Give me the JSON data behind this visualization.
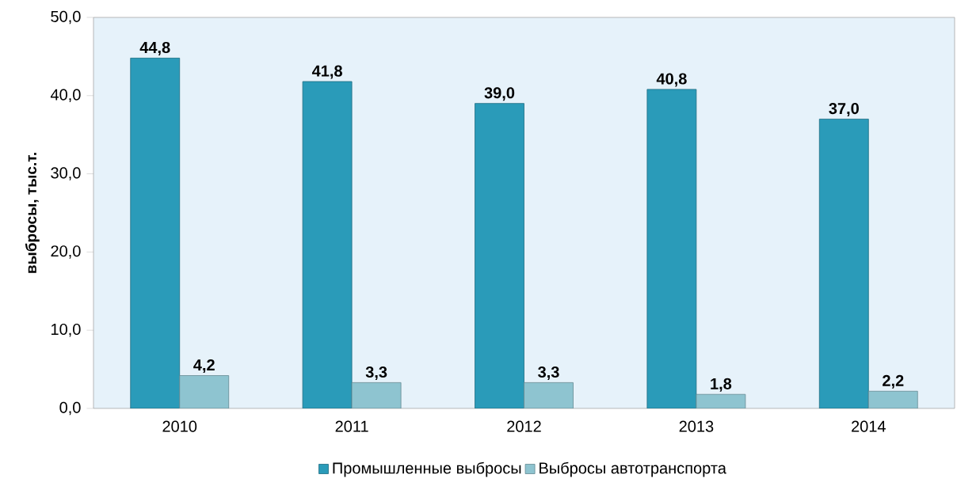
{
  "chart_data": {
    "type": "bar",
    "ylabel": "выбросы, тыс.т.",
    "categories": [
      "2010",
      "2011",
      "2012",
      "2013",
      "2014"
    ],
    "series": [
      {
        "name": "Промышленные выбросы",
        "color": "#2a9bb9",
        "values": [
          44.8,
          41.8,
          39.0,
          40.8,
          37.0
        ],
        "value_labels": [
          "44,8",
          "41,8",
          "39,0",
          "40,8",
          "37,0"
        ]
      },
      {
        "name": "Выбросы автотранспорта",
        "color": "#8ec4d0",
        "values": [
          4.2,
          3.3,
          3.3,
          1.8,
          2.2
        ],
        "value_labels": [
          "4,2",
          "3,3",
          "3,3",
          "1,8",
          "2,2"
        ]
      }
    ],
    "ylim": [
      0,
      50
    ],
    "yticks": [
      {
        "value": 0,
        "label": "0,0"
      },
      {
        "value": 10,
        "label": "10,0"
      },
      {
        "value": 20,
        "label": "20,0"
      },
      {
        "value": 30,
        "label": "30,0"
      },
      {
        "value": 40,
        "label": "40,0"
      },
      {
        "value": 50,
        "label": "50,0"
      }
    ],
    "grid": false,
    "legend": "bottom"
  }
}
